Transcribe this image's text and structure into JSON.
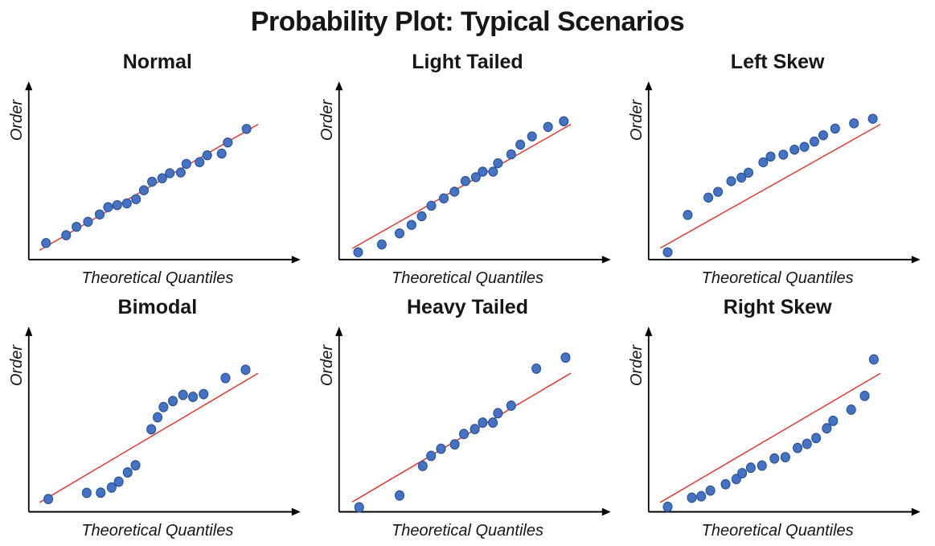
{
  "figure_title": "Probability Plot: Typical Scenarios",
  "colors": {
    "background": "#ffffff",
    "text": "#161616",
    "axis": "#000000",
    "reference_line": "#e63329",
    "marker_fill": "#4472c4",
    "marker_stroke": "#2f5597"
  },
  "chart_data": [
    {
      "type": "scatter",
      "title": "Normal",
      "xlabel": "Theoretical Quantiles",
      "ylabel": "Order",
      "legend": null,
      "grid": false,
      "tick_labels": false,
      "units": "normalized-0-100",
      "x_range": [
        0,
        100
      ],
      "y_range": [
        0,
        100
      ],
      "reference_line": {
        "x1": 4.3,
        "y1": 6.0,
        "x2": 90.2,
        "y2": 86.6
      },
      "points": [
        [
          6.8,
          10.6
        ],
        [
          14.7,
          15.6
        ],
        [
          18.8,
          21.0
        ],
        [
          23.3,
          24.2
        ],
        [
          27.9,
          28.9
        ],
        [
          31.2,
          33.6
        ],
        [
          34.8,
          34.9
        ],
        [
          38.6,
          36.0
        ],
        [
          42.2,
          38.7
        ],
        [
          45.3,
          44.4
        ],
        [
          48.5,
          49.9
        ],
        [
          52.5,
          52.1
        ],
        [
          55.5,
          55.3
        ],
        [
          59.8,
          55.8
        ],
        [
          62.0,
          61.3
        ],
        [
          67.2,
          62.4
        ],
        [
          70.2,
          66.8
        ],
        [
          75.9,
          67.9
        ],
        [
          78.3,
          75.0
        ],
        [
          85.7,
          83.7
        ]
      ]
    },
    {
      "type": "scatter",
      "title": "Light Tailed",
      "xlabel": "Theoretical Quantiles",
      "ylabel": "Order",
      "legend": null,
      "grid": false,
      "tick_labels": false,
      "units": "normalized-0-100",
      "x_range": [
        0,
        100
      ],
      "y_range": [
        0,
        100
      ],
      "reference_line": {
        "x1": 5.2,
        "y1": 7.1,
        "x2": 91.2,
        "y2": 86.6
      },
      "points": [
        [
          7.5,
          4.7
        ],
        [
          16.8,
          9.7
        ],
        [
          23.8,
          16.8
        ],
        [
          28.5,
          22.2
        ],
        [
          32.5,
          27.8
        ],
        [
          36.3,
          34.5
        ],
        [
          41.2,
          39.2
        ],
        [
          45.4,
          43.5
        ],
        [
          49.7,
          50.3
        ],
        [
          53.8,
          52.8
        ],
        [
          56.5,
          56.3
        ],
        [
          60.6,
          56.3
        ],
        [
          62.5,
          61.7
        ],
        [
          67.7,
          67.4
        ],
        [
          71.3,
          73.6
        ],
        [
          75.9,
          78.9
        ],
        [
          82.2,
          85.0
        ],
        [
          88.4,
          88.6
        ]
      ]
    },
    {
      "type": "scatter",
      "title": "Left Skew",
      "xlabel": "Theoretical Quantiles",
      "ylabel": "Order",
      "legend": null,
      "grid": false,
      "tick_labels": false,
      "units": "normalized-0-100",
      "x_range": [
        0,
        100
      ],
      "y_range": [
        0,
        100
      ],
      "reference_line": {
        "x1": 4.6,
        "y1": 7.4,
        "x2": 91.2,
        "y2": 86.6
      },
      "points": [
        [
          7.5,
          4.7
        ],
        [
          15.4,
          28.6
        ],
        [
          23.5,
          39.7
        ],
        [
          27.3,
          43.4
        ],
        [
          32.5,
          50.2
        ],
        [
          36.5,
          52.5
        ],
        [
          39.3,
          55.7
        ],
        [
          45.1,
          62.3
        ],
        [
          48.0,
          66.0
        ],
        [
          53.0,
          67.2
        ],
        [
          57.4,
          70.4
        ],
        [
          61.3,
          72.2
        ],
        [
          65.2,
          75.6
        ],
        [
          68.7,
          79.6
        ],
        [
          73.4,
          83.9
        ],
        [
          80.8,
          87.3
        ],
        [
          88.2,
          90.2
        ]
      ]
    },
    {
      "type": "scatter",
      "title": "Bimodal",
      "xlabel": "Theoretical Quantiles",
      "ylabel": "Order",
      "legend": null,
      "grid": false,
      "tick_labels": false,
      "units": "normalized-0-100",
      "x_range": [
        0,
        100
      ],
      "y_range": [
        0,
        100
      ],
      "reference_line": {
        "x1": 4.3,
        "y1": 5.8,
        "x2": 90.2,
        "y2": 85.4
      },
      "points": [
        [
          7.7,
          7.9
        ],
        [
          22.8,
          11.7
        ],
        [
          28.3,
          11.8
        ],
        [
          32.6,
          15.0
        ],
        [
          35.4,
          18.6
        ],
        [
          38.9,
          24.3
        ],
        [
          42.0,
          28.7
        ],
        [
          48.2,
          50.9
        ],
        [
          50.7,
          58.3
        ],
        [
          53.0,
          64.6
        ],
        [
          56.7,
          68.3
        ],
        [
          60.7,
          72.1
        ],
        [
          64.6,
          70.9
        ],
        [
          68.8,
          72.6
        ],
        [
          77.4,
          82.5
        ],
        [
          85.3,
          87.6
        ]
      ]
    },
    {
      "type": "scatter",
      "title": "Heavy Tailed",
      "xlabel": "Theoretical Quantiles",
      "ylabel": "Order",
      "legend": null,
      "grid": false,
      "tick_labels": false,
      "units": "normalized-0-100",
      "x_range": [
        0,
        100
      ],
      "y_range": [
        0,
        100
      ],
      "reference_line": {
        "x1": 5.2,
        "y1": 6.1,
        "x2": 91.2,
        "y2": 85.5
      },
      "points": [
        [
          7.9,
          2.8
        ],
        [
          23.8,
          10.1
        ],
        [
          32.9,
          28.3
        ],
        [
          36.2,
          34.5
        ],
        [
          40.1,
          38.9
        ],
        [
          45.5,
          41.6
        ],
        [
          49.1,
          48.0
        ],
        [
          53.4,
          51.0
        ],
        [
          56.5,
          55.0
        ],
        [
          60.5,
          55.0
        ],
        [
          62.5,
          60.8
        ],
        [
          67.7,
          65.5
        ],
        [
          77.6,
          88.3
        ],
        [
          89.1,
          95.1
        ]
      ]
    },
    {
      "type": "scatter",
      "title": "Right Skew",
      "xlabel": "Theoretical Quantiles",
      "ylabel": "Order",
      "legend": null,
      "grid": false,
      "tick_labels": false,
      "units": "normalized-0-100",
      "x_range": [
        0,
        100
      ],
      "y_range": [
        0,
        100
      ],
      "reference_line": {
        "x1": 4.6,
        "y1": 5.8,
        "x2": 91.2,
        "y2": 85.4
      },
      "points": [
        [
          7.5,
          3.1
        ],
        [
          17.0,
          8.7
        ],
        [
          20.7,
          9.6
        ],
        [
          24.3,
          13.1
        ],
        [
          30.3,
          17.0
        ],
        [
          34.5,
          20.2
        ],
        [
          36.8,
          23.8
        ],
        [
          40.2,
          27.2
        ],
        [
          44.6,
          28.5
        ],
        [
          49.5,
          32.9
        ],
        [
          53.8,
          33.7
        ],
        [
          58.6,
          39.4
        ],
        [
          62.3,
          41.9
        ],
        [
          65.9,
          45.5
        ],
        [
          70.1,
          51.5
        ],
        [
          72.6,
          56.1
        ],
        [
          79.7,
          63.0
        ],
        [
          85.0,
          71.5
        ],
        [
          88.6,
          94.0
        ]
      ]
    }
  ]
}
